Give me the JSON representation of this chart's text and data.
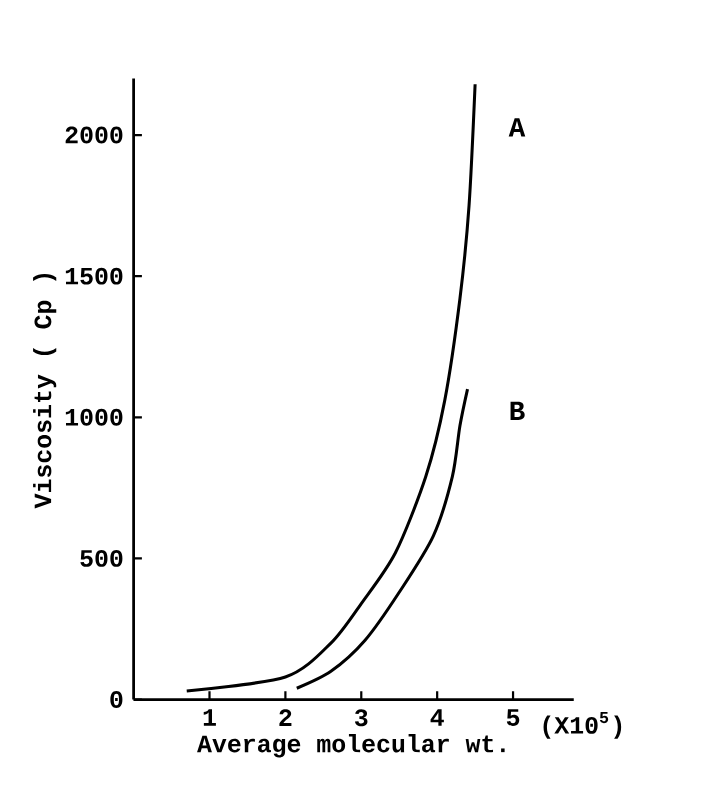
{
  "chart_data": {
    "type": "line",
    "xlabel": "Average molecular wt.",
    "ylabel": "Viscosity ( Cp )",
    "xlim": [
      0,
      5.8
    ],
    "ylim": [
      0,
      2200
    ],
    "xticks": [
      1,
      2,
      3,
      4,
      5
    ],
    "yticks": [
      0,
      500,
      1000,
      1500,
      2000
    ],
    "grid": false,
    "legend": false,
    "marker": "none",
    "line_style": "solid",
    "series": [
      {
        "name": "A",
        "color": "#000000",
        "x": [
          0.7,
          2.0,
          2.6,
          3.0,
          3.45,
          3.85,
          4.1,
          4.3,
          4.42,
          4.5
        ],
        "values": [
          30,
          80,
          200,
          340,
          520,
          790,
          1060,
          1420,
          1750,
          2180
        ]
      },
      {
        "name": "B",
        "color": "#000000",
        "x": [
          2.15,
          2.6,
          3.05,
          3.5,
          3.95,
          4.2,
          4.3,
          4.4
        ],
        "values": [
          40,
          100,
          210,
          380,
          580,
          790,
          970,
          1100
        ]
      }
    ],
    "annotations": [
      "(X10$^{5}$)"
    ]
  }
}
